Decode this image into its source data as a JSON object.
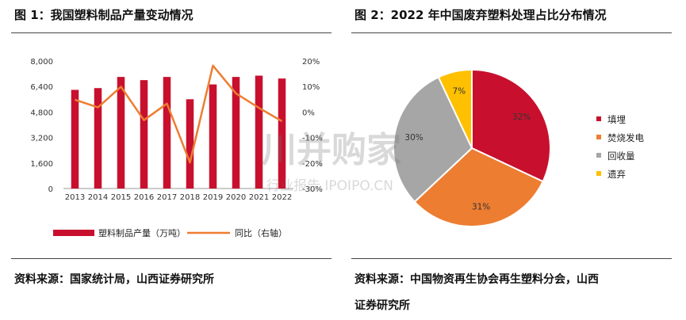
{
  "left_panel": {
    "title": "图 1：我国塑料制品产量变动情况",
    "source": "资料来源：国家统计局，山西证券研究所"
  },
  "right_panel": {
    "title": "图 2：2022 年中国废弃塑料处理占比分布情况",
    "source_line1": "资料来源：中国物资再生协会再生塑料分会，山西",
    "source_line2": "证券研究所"
  },
  "watermark": {
    "line1": "川并购家",
    "line2": "行业报告 IPOIPO.CN"
  },
  "colors": {
    "bar": "#C8102E",
    "line": "#ED7D31",
    "pie_fill": "#C8102E",
    "pie_burn": "#ED7D31",
    "pie_recycle": "#A6A6A6",
    "pie_discard": "#FFC000"
  },
  "chart_data": [
    {
      "type": "bar",
      "categories": [
        "2013",
        "2014",
        "2015",
        "2016",
        "2017",
        "2018",
        "2019",
        "2020",
        "2021",
        "2022"
      ],
      "series": [
        {
          "name": "塑料制品产量（万吨）",
          "type": "bar",
          "axis": "left",
          "values": [
            6190,
            6300,
            7000,
            6800,
            7000,
            5600,
            6530,
            7000,
            7080,
            6900
          ]
        },
        {
          "name": "同比（右轴）",
          "type": "line",
          "axis": "right",
          "values": [
            4.8,
            1.8,
            9.9,
            -3.2,
            3.3,
            -19.8,
            18.2,
            7.3,
            1.6,
            -3.6
          ]
        }
      ],
      "y_left": {
        "min": 0,
        "max": 8000,
        "ticks": [
          "8,000",
          "6,400",
          "4,800",
          "3,200",
          "1,600",
          "0"
        ]
      },
      "y_right": {
        "min": -30,
        "max": 20,
        "ticks": [
          "20%",
          "10%",
          "0%",
          "-10%",
          "-20%",
          "-30%"
        ]
      },
      "legend_position": "bottom",
      "grid": false
    },
    {
      "type": "pie",
      "labels": [
        "填埋",
        "焚烧发电",
        "回收量",
        "遗弃"
      ],
      "values": [
        32,
        31,
        30,
        7
      ],
      "value_labels": [
        "32%",
        "31%",
        "30%",
        "7%"
      ],
      "legend_position": "right"
    }
  ]
}
